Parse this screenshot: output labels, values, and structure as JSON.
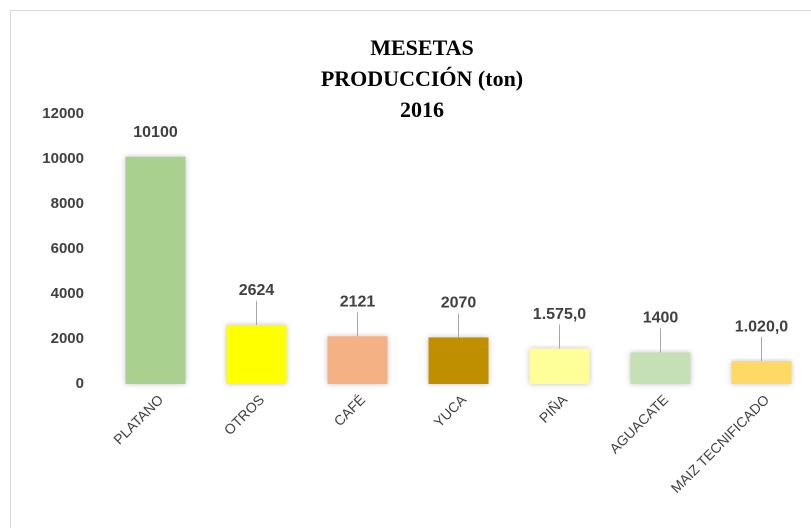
{
  "chart_data": {
    "type": "bar",
    "title": [
      "MESETAS",
      "PRODUCCIÓN (ton)",
      "2016"
    ],
    "categories": [
      "PLATANO",
      "OTROS",
      "CAFÉ",
      "YUCA",
      "PIÑA",
      "AGUACATE",
      "MAIZ TECNIFICADO"
    ],
    "values": [
      10100,
      2624,
      2121,
      2070,
      1575,
      1400,
      1020
    ],
    "value_labels": [
      "10100",
      "2624",
      "2121",
      "2070",
      "1.575,0",
      "1400",
      "1.020,0"
    ],
    "colors": [
      "#a9d08e",
      "#ffff00",
      "#f4b183",
      "#bf8f00",
      "#ffff99",
      "#c5e0b4",
      "#ffd966"
    ],
    "ylim": [
      0,
      12000
    ],
    "yticks": [
      0,
      2000,
      4000,
      6000,
      8000,
      10000,
      12000
    ],
    "grid": false
  }
}
